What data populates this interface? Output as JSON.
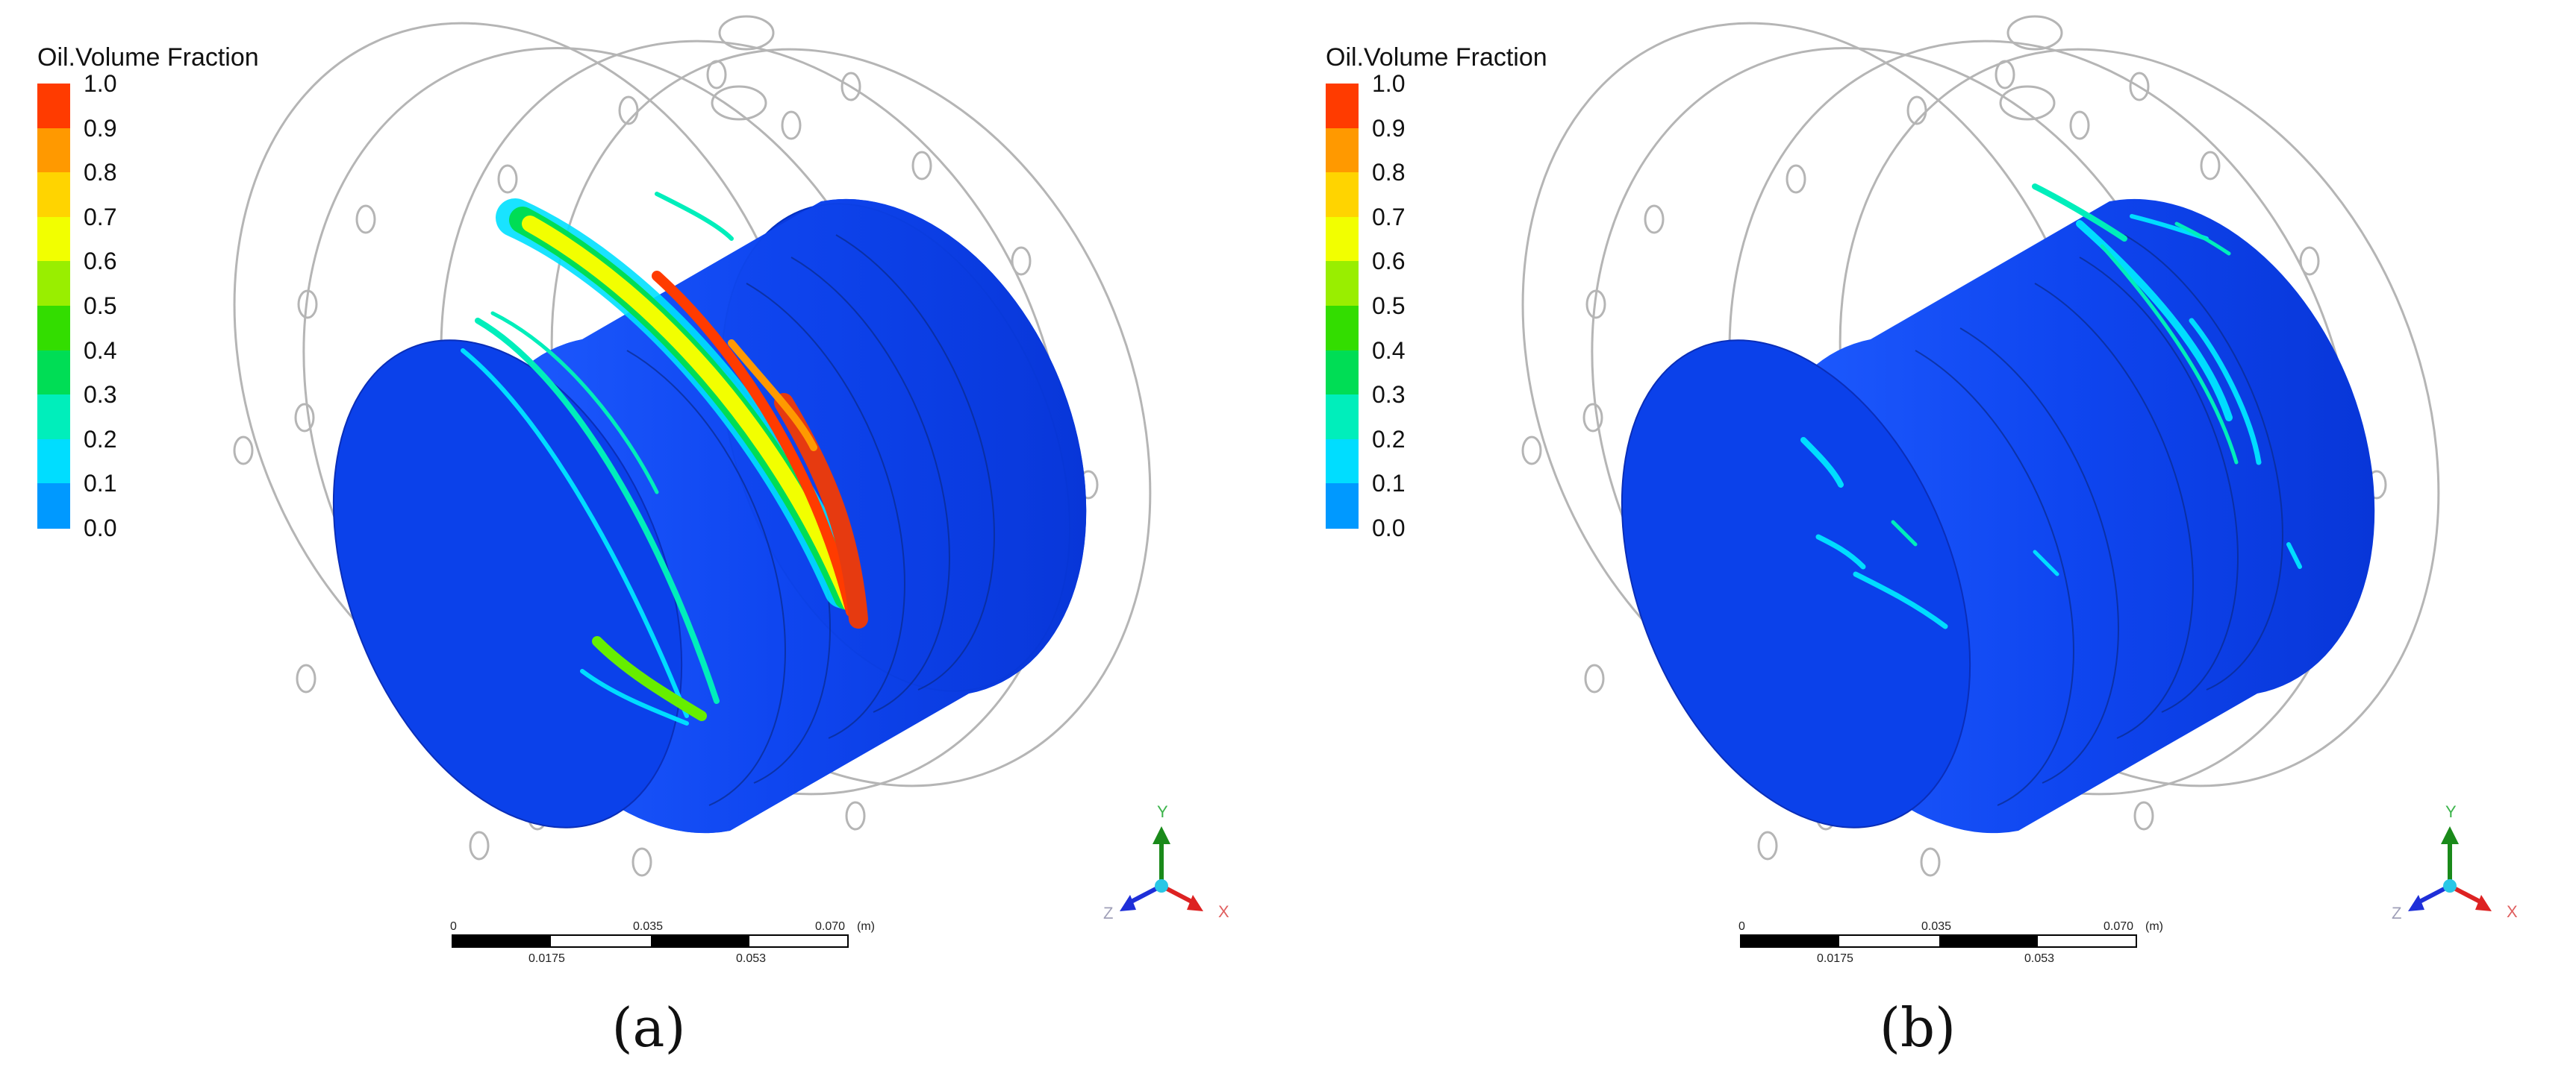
{
  "panels": [
    {
      "id": "a",
      "legend": {
        "title": "Oil.Volume Fraction",
        "ticks": [
          "1.0",
          "0.9",
          "0.8",
          "0.7",
          "0.6",
          "0.5",
          "0.4",
          "0.3",
          "0.2",
          "0.1",
          "0.0"
        ],
        "colors": [
          "#ff3b00",
          "#ff9900",
          "#ffd400",
          "#f2ff00",
          "#99ee00",
          "#33dd00",
          "#00dd55",
          "#00eebb",
          "#00ddff",
          "#0099ff",
          "#0040ff"
        ]
      },
      "scale": {
        "ticks_top": [
          "0",
          "0.035",
          "0.070"
        ],
        "unit": "(m)",
        "ticks_bottom": [
          "0.0175",
          "0.053"
        ]
      },
      "triad": {
        "y": "Y",
        "x": "X",
        "z": "Z"
      },
      "sub_label": "(a)",
      "oil_band": "strong"
    },
    {
      "id": "b",
      "legend": {
        "title": "Oil.Volume Fraction",
        "ticks": [
          "1.0",
          "0.9",
          "0.8",
          "0.7",
          "0.6",
          "0.5",
          "0.4",
          "0.3",
          "0.2",
          "0.1",
          "0.0"
        ],
        "colors": [
          "#ff3b00",
          "#ff9900",
          "#ffd400",
          "#f2ff00",
          "#99ee00",
          "#33dd00",
          "#00dd55",
          "#00eebb",
          "#00ddff",
          "#0099ff",
          "#0040ff"
        ]
      },
      "scale": {
        "ticks_top": [
          "0",
          "0.035",
          "0.070"
        ],
        "unit": "(m)",
        "ticks_bottom": [
          "0.0175",
          "0.053"
        ]
      },
      "triad": {
        "y": "Y",
        "x": "X",
        "z": "Z"
      },
      "sub_label": "(b)",
      "oil_band": "weak"
    }
  ]
}
